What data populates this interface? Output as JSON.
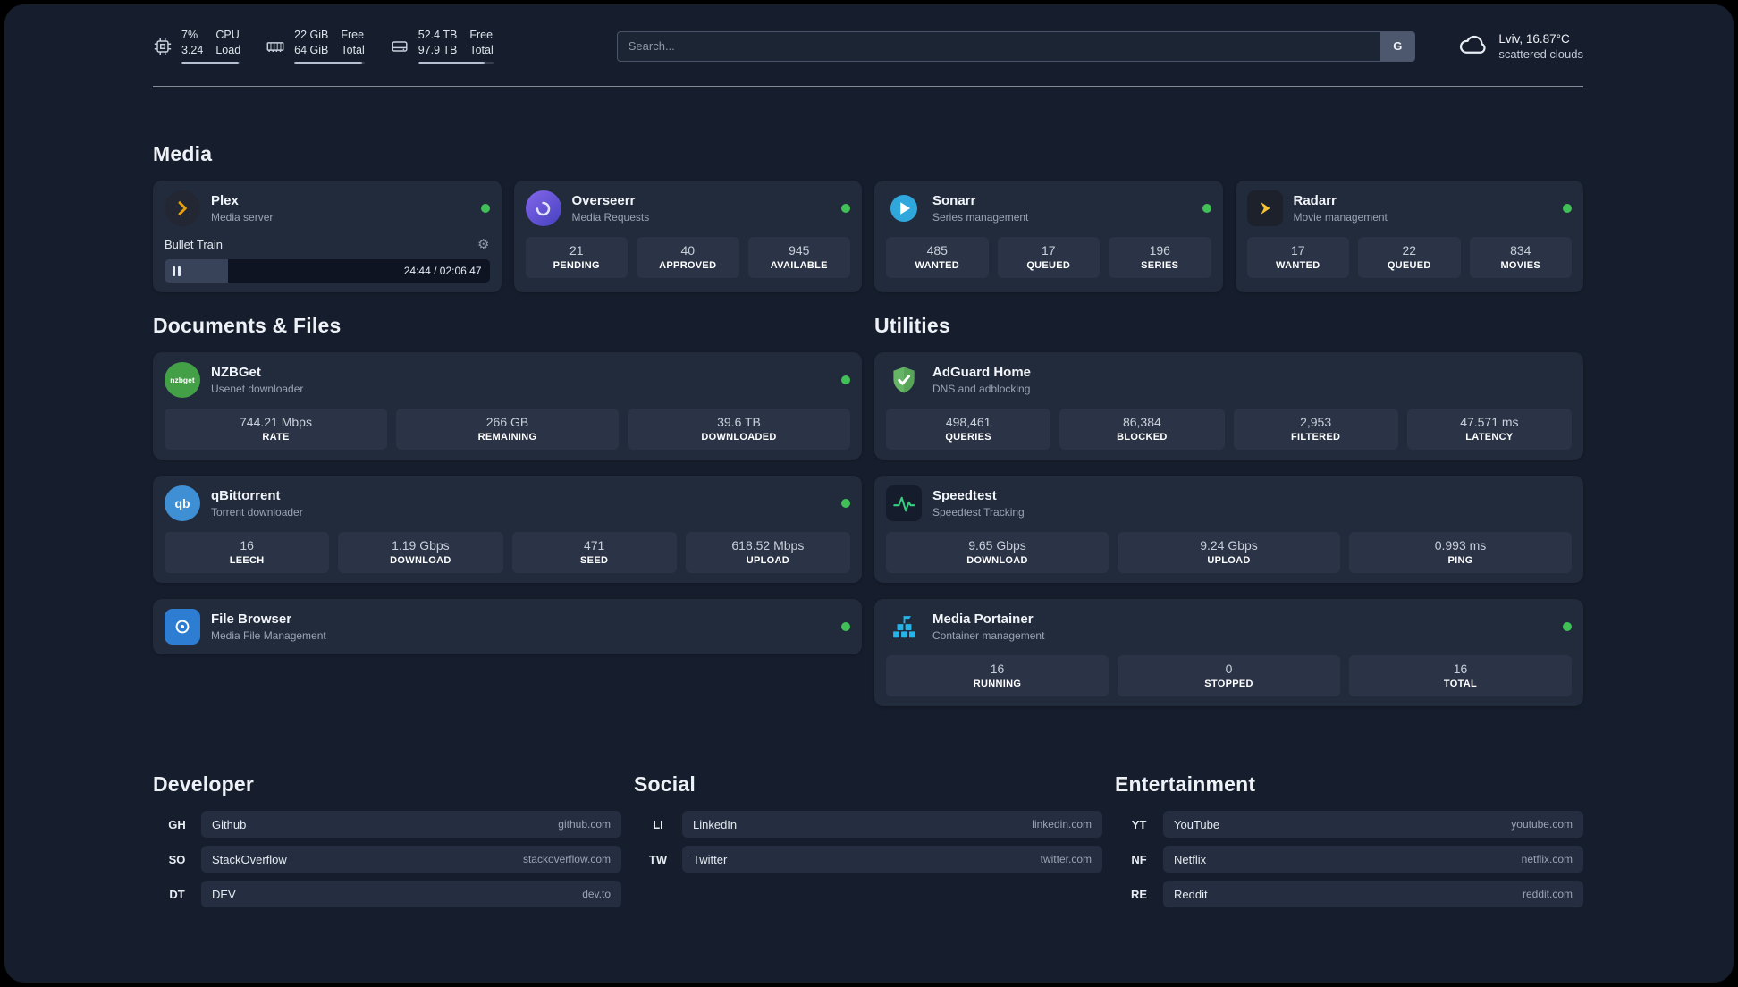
{
  "colors": {
    "page_bg": "#161e2d",
    "card_bg": "#222b3c",
    "tile_bg": "#2b3447",
    "status_online": "#40c057",
    "plex_orange": "#e5a00d"
  },
  "topbar": {
    "monitors": [
      {
        "icon": "cpu-icon",
        "value_top": "7%",
        "value_bottom": "3.24",
        "label_top": "CPU",
        "label_bottom": "Load",
        "bar_percent": 97
      },
      {
        "icon": "memory-icon",
        "value_top": "22 GiB",
        "value_bottom": "64 GiB",
        "label_top": "Free",
        "label_bottom": "Total",
        "bar_percent": 97
      },
      {
        "icon": "disk-icon",
        "value_top": "52.4 TB",
        "value_bottom": "97.9 TB",
        "label_top": "Free",
        "label_bottom": "Total",
        "bar_percent": 88
      }
    ],
    "search": {
      "placeholder": "Search...",
      "button_label": "G"
    },
    "weather": {
      "location": "Lviv, 16.87°C",
      "condition": "scattered clouds"
    }
  },
  "media": {
    "title": "Media",
    "plex": {
      "name": "Plex",
      "subtitle": "Media server",
      "now_playing": "Bullet Train",
      "time": "24:44 / 02:06:47",
      "progress_percent": 19.5
    },
    "overseerr": {
      "name": "Overseerr",
      "subtitle": "Media Requests",
      "stats": [
        {
          "value": "21",
          "label": "PENDING"
        },
        {
          "value": "40",
          "label": "APPROVED"
        },
        {
          "value": "945",
          "label": "AVAILABLE"
        }
      ]
    },
    "sonarr": {
      "name": "Sonarr",
      "subtitle": "Series management",
      "stats": [
        {
          "value": "485",
          "label": "WANTED"
        },
        {
          "value": "17",
          "label": "QUEUED"
        },
        {
          "value": "196",
          "label": "SERIES"
        }
      ]
    },
    "radarr": {
      "name": "Radarr",
      "subtitle": "Movie management",
      "stats": [
        {
          "value": "17",
          "label": "WANTED"
        },
        {
          "value": "22",
          "label": "QUEUED"
        },
        {
          "value": "834",
          "label": "MOVIES"
        }
      ]
    }
  },
  "documents": {
    "title": "Documents & Files",
    "nzbget": {
      "name": "NZBGet",
      "subtitle": "Usenet downloader",
      "icon_text": "nzbget",
      "stats": [
        {
          "value": "744.21 Mbps",
          "label": "RATE"
        },
        {
          "value": "266 GB",
          "label": "REMAINING"
        },
        {
          "value": "39.6 TB",
          "label": "DOWNLOADED"
        }
      ]
    },
    "qbittorrent": {
      "name": "qBittorrent",
      "subtitle": "Torrent downloader",
      "icon_text": "qb",
      "stats": [
        {
          "value": "16",
          "label": "LEECH"
        },
        {
          "value": "1.19 Gbps",
          "label": "DOWNLOAD"
        },
        {
          "value": "471",
          "label": "SEED"
        },
        {
          "value": "618.52 Mbps",
          "label": "UPLOAD"
        }
      ]
    },
    "filebrowser": {
      "name": "File Browser",
      "subtitle": "Media File Management"
    }
  },
  "utilities": {
    "title": "Utilities",
    "adguard": {
      "name": "AdGuard Home",
      "subtitle": "DNS and adblocking",
      "stats": [
        {
          "value": "498,461",
          "label": "QUERIES"
        },
        {
          "value": "86,384",
          "label": "BLOCKED"
        },
        {
          "value": "2,953",
          "label": "FILTERED"
        },
        {
          "value": "47.571 ms",
          "label": "LATENCY"
        }
      ]
    },
    "speedtest": {
      "name": "Speedtest",
      "subtitle": "Speedtest Tracking",
      "stats": [
        {
          "value": "9.65 Gbps",
          "label": "DOWNLOAD"
        },
        {
          "value": "9.24 Gbps",
          "label": "UPLOAD"
        },
        {
          "value": "0.993 ms",
          "label": "PING"
        }
      ]
    },
    "portainer": {
      "name": "Media Portainer",
      "subtitle": "Container management",
      "stats": [
        {
          "value": "16",
          "label": "RUNNING"
        },
        {
          "value": "0",
          "label": "STOPPED"
        },
        {
          "value": "16",
          "label": "TOTAL"
        }
      ]
    }
  },
  "bookmarks": [
    {
      "title": "Developer",
      "items": [
        {
          "abbr": "GH",
          "name": "Github",
          "url": "github.com"
        },
        {
          "abbr": "SO",
          "name": "StackOverflow",
          "url": "stackoverflow.com"
        },
        {
          "abbr": "DT",
          "name": "DEV",
          "url": "dev.to"
        }
      ]
    },
    {
      "title": "Social",
      "items": [
        {
          "abbr": "LI",
          "name": "LinkedIn",
          "url": "linkedin.com"
        },
        {
          "abbr": "TW",
          "name": "Twitter",
          "url": "twitter.com"
        }
      ]
    },
    {
      "title": "Entertainment",
      "items": [
        {
          "abbr": "YT",
          "name": "YouTube",
          "url": "youtube.com"
        },
        {
          "abbr": "NF",
          "name": "Netflix",
          "url": "netflix.com"
        },
        {
          "abbr": "RE",
          "name": "Reddit",
          "url": "reddit.com"
        }
      ]
    }
  ]
}
